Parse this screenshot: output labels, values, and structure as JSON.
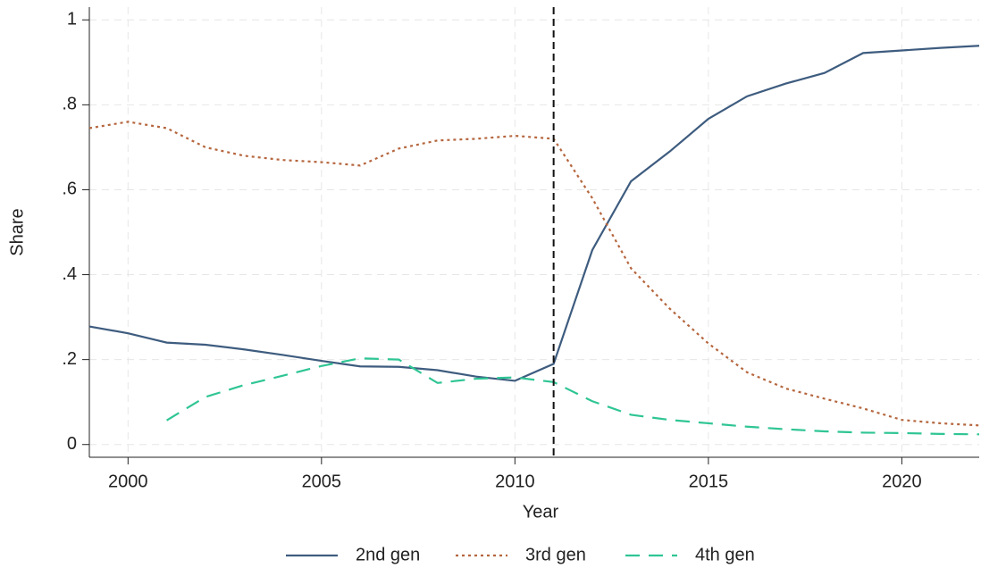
{
  "chart_data": {
    "type": "line",
    "x": [
      1999,
      2000,
      2001,
      2002,
      2003,
      2004,
      2005,
      2006,
      2007,
      2008,
      2009,
      2010,
      2011,
      2012,
      2013,
      2014,
      2015,
      2016,
      2017,
      2018,
      2019,
      2020,
      2021,
      2022
    ],
    "series": [
      {
        "name": "2nd gen",
        "color": "#3e5c7f",
        "style": "solid",
        "values": [
          0.278,
          0.262,
          0.24,
          0.235,
          0.224,
          0.211,
          0.197,
          0.184,
          0.183,
          0.175,
          0.16,
          0.15,
          0.19,
          0.458,
          0.62,
          0.69,
          0.767,
          0.82,
          0.85,
          0.875,
          0.922,
          0.928,
          0.934,
          0.939
        ]
      },
      {
        "name": "3rd gen",
        "color": "#b5663e",
        "style": "dot",
        "values": [
          0.745,
          0.76,
          0.745,
          0.7,
          0.68,
          0.67,
          0.665,
          0.657,
          0.697,
          0.716,
          0.72,
          0.727,
          0.72,
          0.58,
          0.415,
          0.32,
          0.238,
          0.17,
          0.132,
          0.108,
          0.085,
          0.058,
          0.05,
          0.045
        ]
      },
      {
        "name": "4th gen",
        "color": "#2fc594",
        "style": "dash",
        "values": [
          null,
          null,
          0.057,
          0.112,
          0.14,
          0.162,
          0.185,
          0.203,
          0.2,
          0.145,
          0.155,
          0.158,
          0.147,
          0.102,
          0.07,
          0.058,
          0.05,
          0.042,
          0.036,
          0.031,
          0.028,
          0.027,
          0.025,
          0.024
        ]
      }
    ],
    "xlabel": "Year",
    "ylabel": "Share",
    "xlim": [
      1999,
      2022
    ],
    "xticks": [
      2000,
      2005,
      2010,
      2015,
      2020
    ],
    "ylim": [
      -0.03,
      1.03
    ],
    "yticks": [
      0,
      {
        "value": 0.2,
        "label": ".2"
      },
      {
        "value": 0.4,
        "label": ".4"
      },
      {
        "value": 0.6,
        "label": ".6"
      },
      {
        "value": 0.8,
        "label": ".8"
      },
      1
    ],
    "vline": 2011,
    "grid": true,
    "legend": "bottom"
  }
}
